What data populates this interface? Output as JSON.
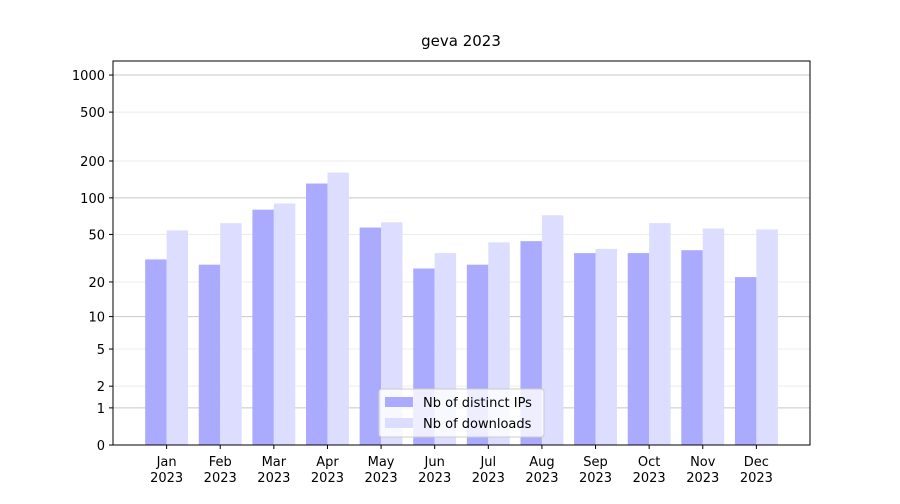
{
  "chart_data": {
    "type": "bar",
    "title": "geva 2023",
    "categories": [
      [
        "Jan",
        "2023"
      ],
      [
        "Feb",
        "2023"
      ],
      [
        "Mar",
        "2023"
      ],
      [
        "Apr",
        "2023"
      ],
      [
        "May",
        "2023"
      ],
      [
        "Jun",
        "2023"
      ],
      [
        "Jul",
        "2023"
      ],
      [
        "Aug",
        "2023"
      ],
      [
        "Sep",
        "2023"
      ],
      [
        "Oct",
        "2023"
      ],
      [
        "Nov",
        "2023"
      ],
      [
        "Dec",
        "2023"
      ]
    ],
    "series": [
      {
        "name": "Nb of distinct IPs",
        "color": "#aaaaff",
        "values": [
          31,
          28,
          80,
          131,
          57,
          26,
          28,
          44,
          35,
          35,
          37,
          22
        ]
      },
      {
        "name": "Nb of downloads",
        "color": "#ddddff",
        "values": [
          54,
          62,
          90,
          161,
          63,
          35,
          43,
          72,
          38,
          62,
          56,
          55
        ]
      }
    ],
    "yscale": "log1p",
    "ylim": [
      0,
      1300
    ],
    "yticks": [
      0,
      1,
      2,
      5,
      10,
      20,
      50,
      100,
      200,
      500,
      1000
    ],
    "grid": true,
    "legend": "lower center"
  }
}
